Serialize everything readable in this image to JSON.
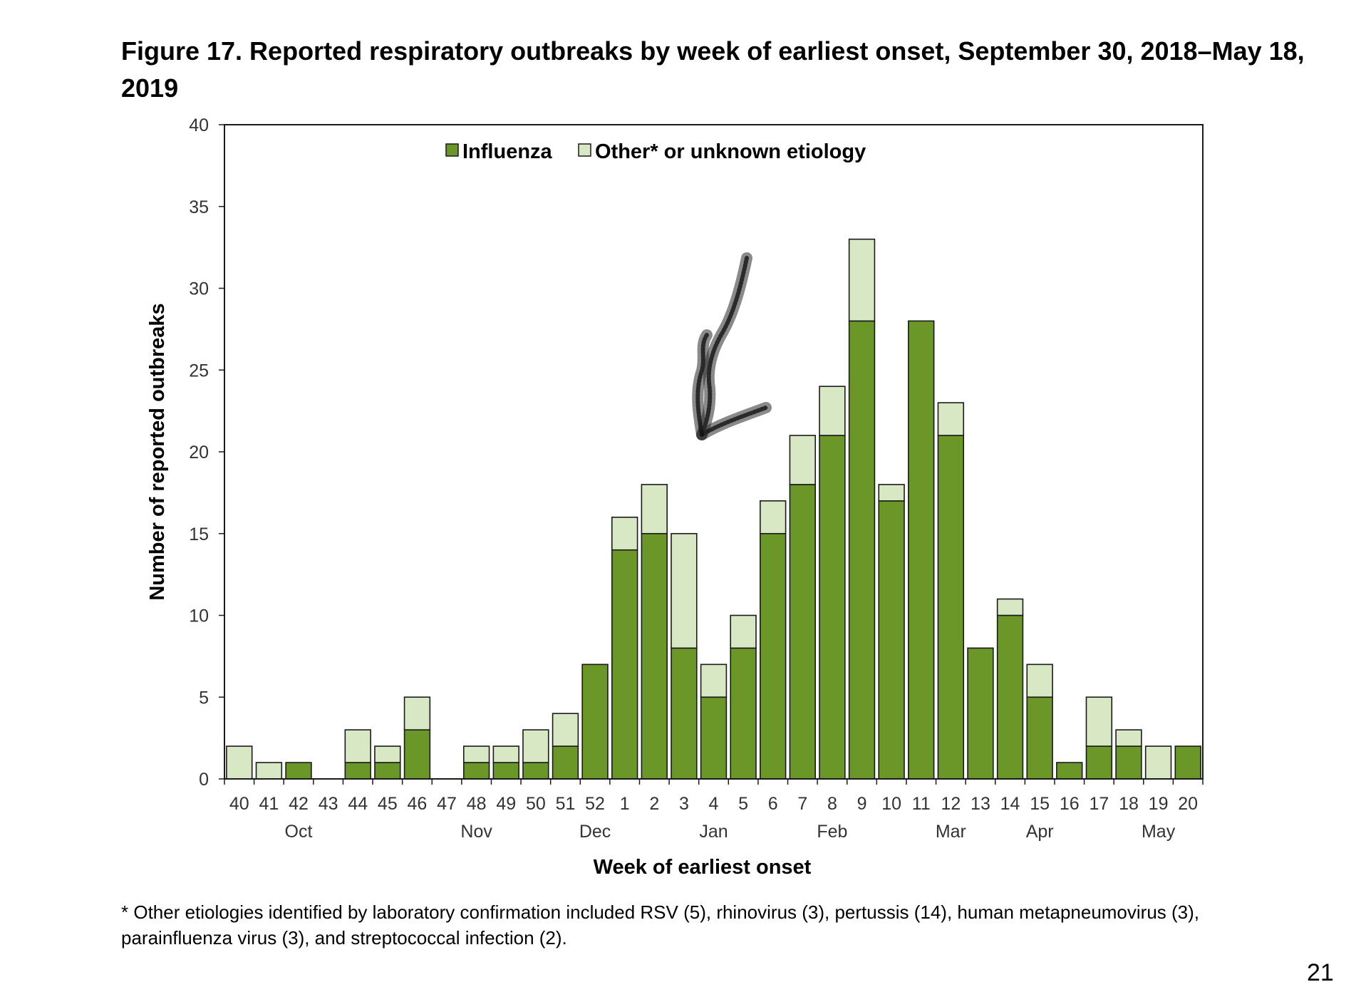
{
  "figure": {
    "title": "Figure 17. Reported respiratory outbreaks by week of earliest onset, September 30, 2018–May 18, 2019",
    "footnote": "* Other etiologies identified by laboratory confirmation included RSV (5), rhinovirus (3), pertussis (14), human metapneumovirus (3), parainfluenza virus (3), and streptococcal infection (2).",
    "page_number": "21"
  },
  "colors": {
    "influenza": "#6b9628",
    "other": "#d9e8c4",
    "stroke": "#1a1a1a"
  },
  "chart_data": {
    "type": "bar",
    "stacked": true,
    "categories": [
      "40",
      "41",
      "42",
      "43",
      "44",
      "45",
      "46",
      "47",
      "48",
      "49",
      "50",
      "51",
      "52",
      "1",
      "2",
      "3",
      "4",
      "5",
      "6",
      "7",
      "8",
      "9",
      "10",
      "11",
      "12",
      "13",
      "14",
      "15",
      "16",
      "17",
      "18",
      "19",
      "20"
    ],
    "months": [
      {
        "label": "Oct",
        "week": "42"
      },
      {
        "label": "Nov",
        "week": "48"
      },
      {
        "label": "Dec",
        "week": "52"
      },
      {
        "label": "Jan",
        "week": "4"
      },
      {
        "label": "Feb",
        "week": "8"
      },
      {
        "label": "Mar",
        "week": "12"
      },
      {
        "label": "Apr",
        "week": "15"
      },
      {
        "label": "May",
        "week": "19"
      }
    ],
    "series": [
      {
        "name": "Influenza",
        "values": [
          0,
          0,
          1,
          0,
          1,
          1,
          3,
          0,
          1,
          1,
          1,
          2,
          7,
          14,
          15,
          8,
          5,
          8,
          15,
          18,
          21,
          28,
          17,
          28,
          21,
          8,
          10,
          5,
          1,
          2,
          2,
          0,
          2
        ]
      },
      {
        "name": "Other* or unknown etiology",
        "values": [
          2,
          1,
          0,
          0,
          2,
          1,
          2,
          0,
          1,
          1,
          2,
          2,
          0,
          2,
          3,
          7,
          2,
          2,
          2,
          3,
          3,
          5,
          1,
          0,
          2,
          0,
          1,
          2,
          0,
          3,
          1,
          2,
          0
        ]
      }
    ],
    "ylim": [
      0,
      40
    ],
    "yticks": [
      0,
      5,
      10,
      15,
      20,
      25,
      30,
      35,
      40
    ],
    "xlabel": "Week of earliest onset",
    "ylabel": "Number of reported outbreaks",
    "legend": "top-center",
    "grid": false
  }
}
